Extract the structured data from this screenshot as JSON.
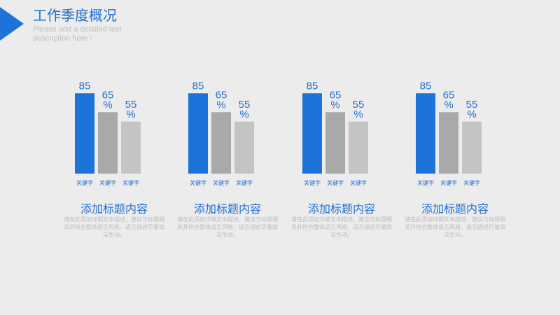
{
  "header": {
    "title": "工作季度概况",
    "subtitle": "Please add a detailed text description here !"
  },
  "colors": {
    "accent": "#1e73d8",
    "bar_primary": "#1e73d8",
    "bar_secondary": "#a9a9a9",
    "bar_tertiary": "#c4c4c4",
    "background": "#ececec"
  },
  "chart_data": [
    {
      "type": "bar",
      "categories": [
        "关键字",
        "关键字",
        "关键字"
      ],
      "values": [
        85,
        65,
        55
      ],
      "value_labels": [
        "85",
        "65\n%",
        "55\n%"
      ],
      "ylim": [
        0,
        100
      ],
      "grid": false,
      "panel_title": "添加标题内容",
      "description": "请在此添加详细文本描述，建议与标题相关并符合整体语言风格，语言描述尽量简洁生动。"
    },
    {
      "type": "bar",
      "categories": [
        "关键字",
        "关键字",
        "关键字"
      ],
      "values": [
        85,
        65,
        55
      ],
      "value_labels": [
        "85",
        "65\n%",
        "55\n%"
      ],
      "ylim": [
        0,
        100
      ],
      "grid": false,
      "panel_title": "添加标题内容",
      "description": "请在此添加详细文本描述，建议与标题相关并符合整体语言风格，语言描述尽量简洁生动。"
    },
    {
      "type": "bar",
      "categories": [
        "关键字",
        "关键字",
        "关键字"
      ],
      "values": [
        85,
        65,
        55
      ],
      "value_labels": [
        "85",
        "65\n%",
        "55\n%"
      ],
      "ylim": [
        0,
        100
      ],
      "grid": false,
      "panel_title": "添加标题内容",
      "description": "请在此添加详细文本描述，建议与标题相关并符合整体语言风格，语言描述尽量简洁生动。"
    },
    {
      "type": "bar",
      "categories": [
        "关键字",
        "关键字",
        "关键字"
      ],
      "values": [
        85,
        65,
        55
      ],
      "value_labels": [
        "85",
        "65\n%",
        "55\n%"
      ],
      "ylim": [
        0,
        100
      ],
      "grid": false,
      "panel_title": "添加标题内容",
      "description": "请在此添加详细文本描述，建议与标题相关并符合整体语言风格，语言描述尽量简洁生动。"
    }
  ]
}
